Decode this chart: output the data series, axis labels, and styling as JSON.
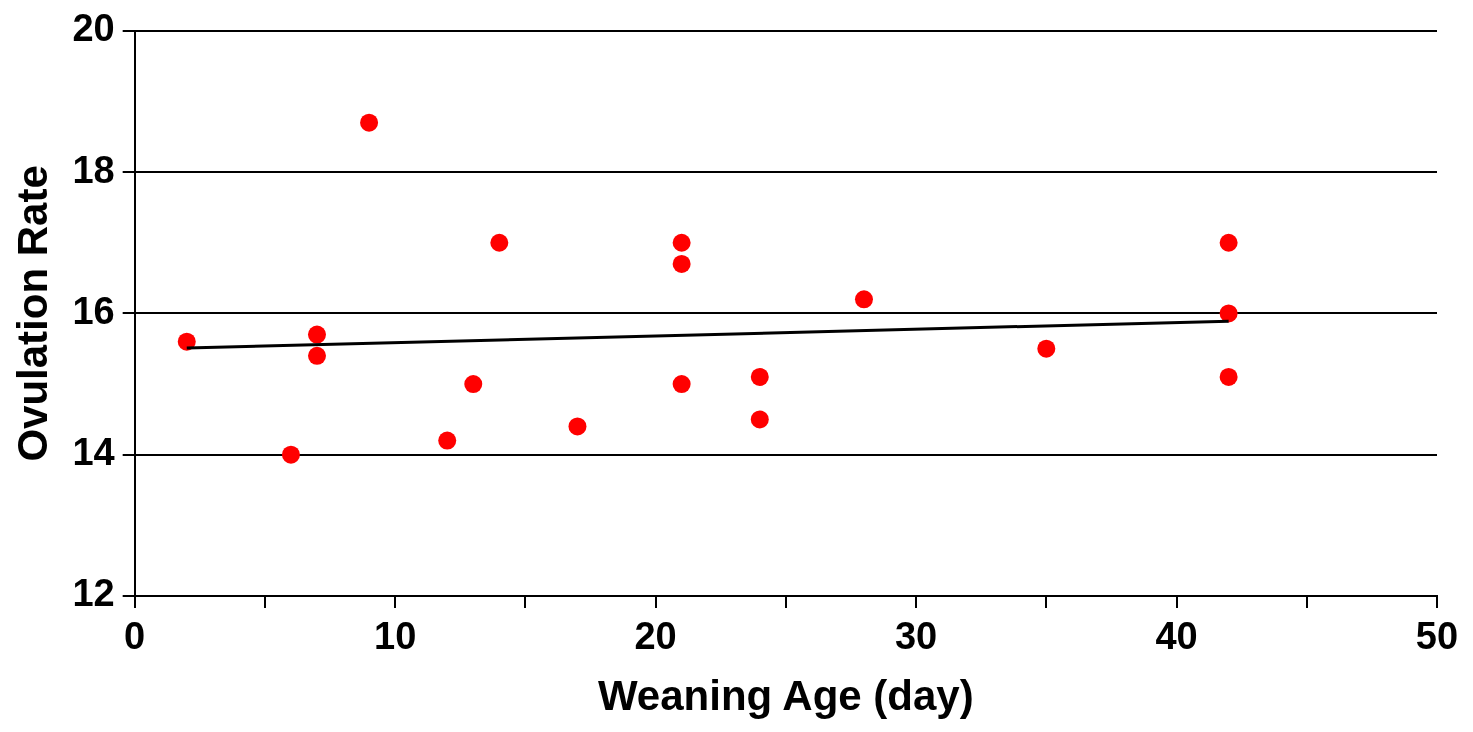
{
  "chart_data": {
    "type": "scatter",
    "xlabel": "Weaning Age (day)",
    "ylabel": "Ovulation Rate",
    "xlim": [
      0,
      50
    ],
    "xticks": [
      0,
      {
        "value": 5,
        "label": null
      },
      10,
      {
        "value": 15,
        "label": null
      },
      20,
      {
        "value": 25,
        "label": null
      },
      30,
      {
        "value": 35,
        "label": null
      },
      40,
      {
        "value": 45,
        "label": null
      },
      50
    ],
    "ylim": [
      12,
      20
    ],
    "yticks": [
      12,
      14,
      16,
      18,
      20
    ],
    "grid": "y",
    "legend": false,
    "marker": "circle",
    "series": [
      {
        "type": "scatter",
        "color": "#ff0000",
        "x": [
          2,
          6,
          7,
          7,
          9,
          12,
          13,
          14,
          17,
          21,
          21,
          21,
          24,
          24,
          28,
          35,
          42,
          42,
          42
        ],
        "values": [
          15.6,
          14.0,
          15.7,
          15.4,
          18.7,
          14.2,
          15.0,
          17.0,
          14.4,
          17.0,
          16.7,
          15.0,
          15.1,
          14.5,
          16.2,
          15.5,
          17.0,
          16.0,
          15.1
        ]
      },
      {
        "type": "line",
        "color": "#000000",
        "marker": "none",
        "x": [
          2,
          42
        ],
        "values": [
          15.51,
          15.89
        ]
      }
    ]
  }
}
